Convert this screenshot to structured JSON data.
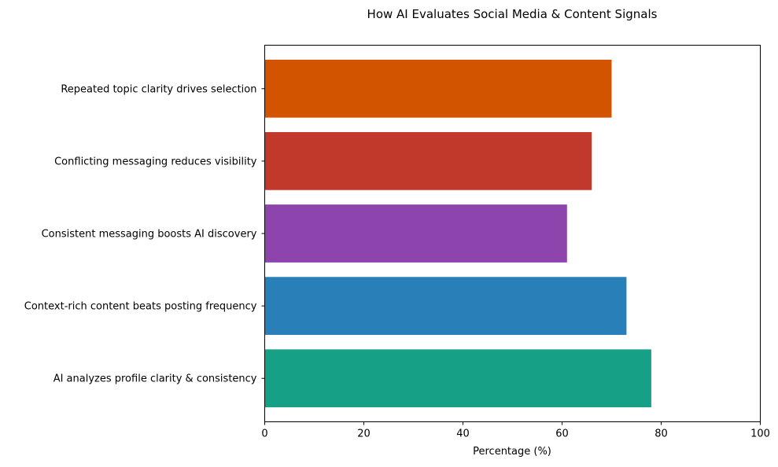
{
  "chart_data": {
    "type": "bar",
    "orientation": "horizontal",
    "title": "How AI Evaluates Social Media & Content Signals",
    "xlabel": "Percentage (%)",
    "ylabel": "",
    "xlim": [
      0,
      100
    ],
    "x_ticks": [
      0,
      20,
      40,
      60,
      80,
      100
    ],
    "grid": false,
    "categories": [
      "AI analyzes profile clarity & consistency",
      "Context-rich content beats posting frequency",
      "Consistent messaging boosts AI discovery",
      "Conflicting messaging reduces visibility",
      "Repeated topic clarity drives selection"
    ],
    "values": [
      78,
      73,
      61,
      66,
      70
    ],
    "colors": [
      "#16a085",
      "#2980b9",
      "#8e44ad",
      "#c0392b",
      "#d35400"
    ]
  }
}
